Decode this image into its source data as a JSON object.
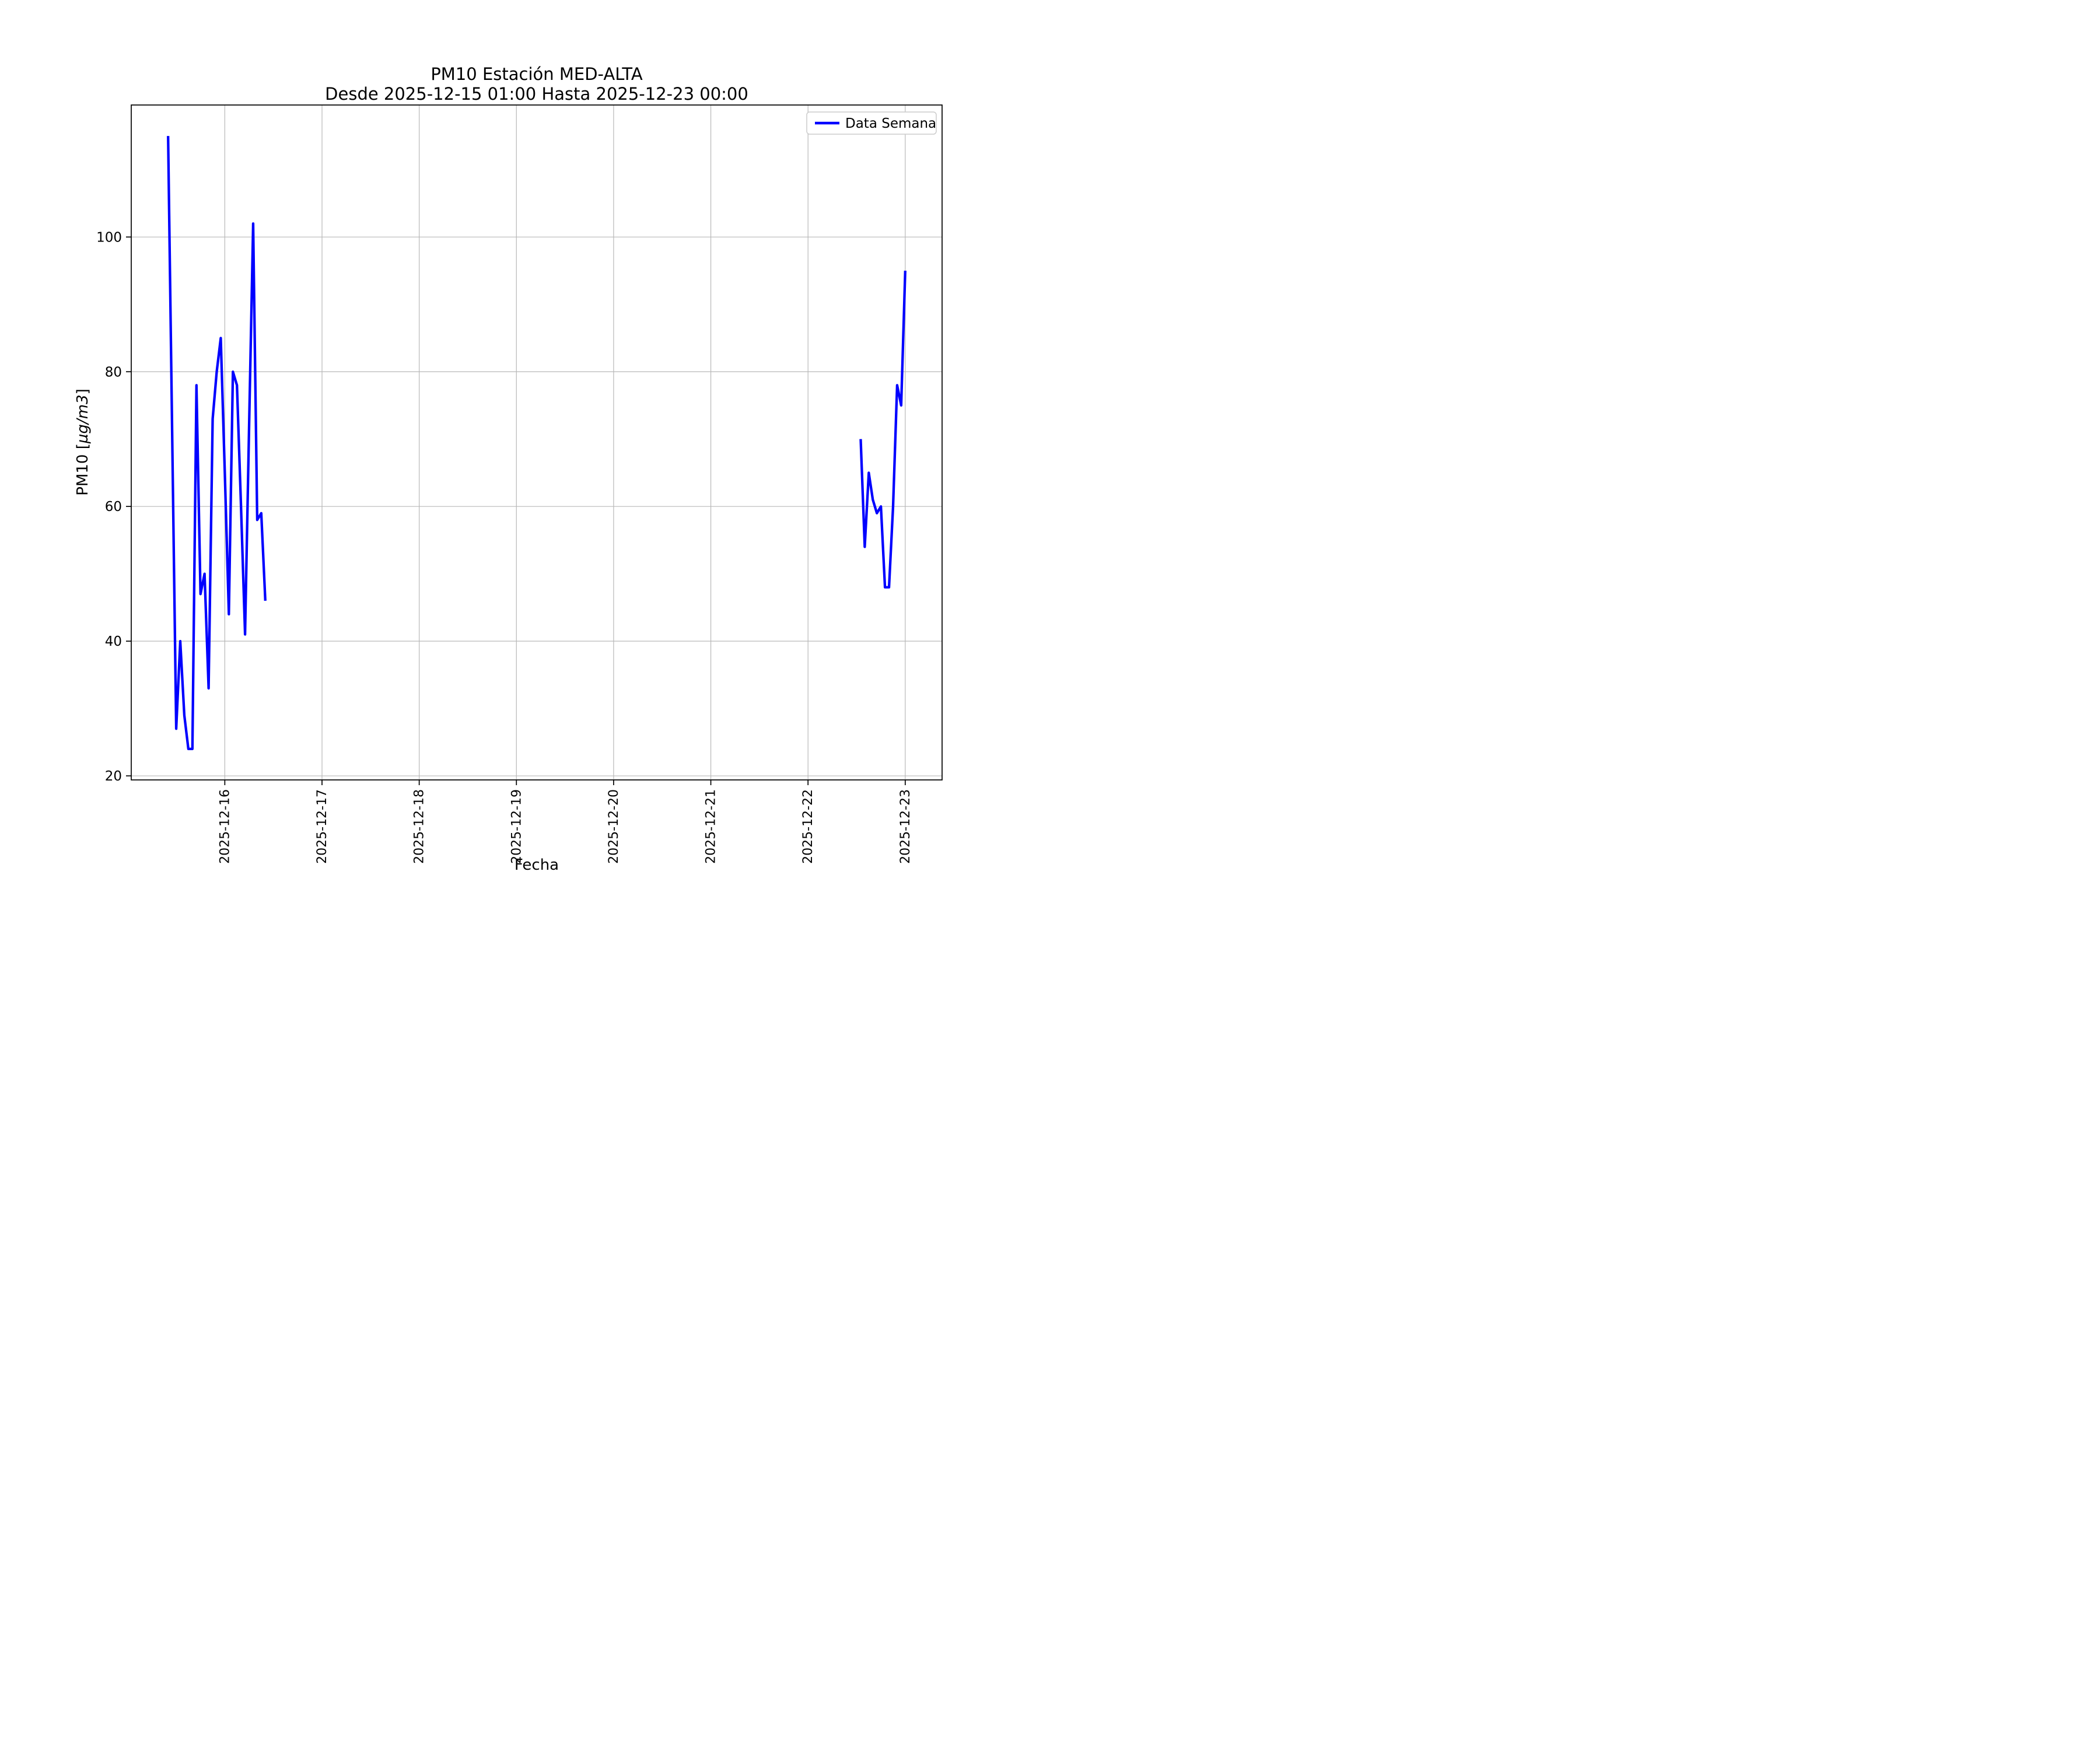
{
  "chart_data": {
    "type": "line",
    "title": "PM10 Estación MED-ALTA",
    "subtitle": "Desde 2025-12-15 01:00 Hasta 2025-12-23 00:00",
    "xlabel": "Fecha",
    "ylabel": "PM10 [µg/m3]",
    "ylabel_parts": {
      "prefix": "PM10 [",
      "math": "µg/m3",
      "suffix": "]"
    },
    "grid": true,
    "line_color": "#0000ff",
    "grid_color": "#b8b8b8",
    "x_axis": {
      "unit": "hours since 2025-12-15 00:00",
      "lim": [
        0.9,
        201.1
      ],
      "ticks": [
        24,
        48,
        72,
        96,
        120,
        144,
        168,
        192
      ],
      "tick_labels": [
        "2025-12-16",
        "2025-12-17",
        "2025-12-18",
        "2025-12-19",
        "2025-12-20",
        "2025-12-21",
        "2025-12-22",
        "2025-12-23"
      ],
      "tick_rotation_deg": 90
    },
    "y_axis": {
      "lim": [
        19.4,
        119.6
      ],
      "ticks": [
        20,
        40,
        60,
        80,
        100
      ],
      "tick_labels": [
        "20",
        "40",
        "60",
        "80",
        "100"
      ]
    },
    "legend": {
      "position": "upper right",
      "entries": [
        {
          "label": "Data Semana",
          "color": "#0000ff"
        }
      ]
    },
    "series": [
      {
        "name": "Data Semana",
        "color": "#0000ff",
        "segments": [
          {
            "points_h_v": [
              [
                10,
                115
              ],
              [
                11,
                71
              ],
              [
                12,
                27
              ],
              [
                13,
                40
              ],
              [
                14,
                29
              ],
              [
                15,
                24
              ],
              [
                16,
                24
              ],
              [
                17,
                78
              ],
              [
                18,
                47
              ],
              [
                19,
                50
              ],
              [
                20,
                33
              ],
              [
                21,
                73
              ],
              [
                22,
                80
              ],
              [
                23,
                85
              ],
              [
                24,
                65
              ],
              [
                25,
                44
              ],
              [
                26,
                80
              ],
              [
                27,
                78
              ],
              [
                28,
                60
              ],
              [
                29,
                41
              ],
              [
                30,
                72
              ],
              [
                31,
                102
              ],
              [
                32,
                58
              ],
              [
                33,
                59
              ],
              [
                34,
                46
              ]
            ]
          },
          {
            "points_h_v": [
              [
                181,
                70
              ],
              [
                182,
                54
              ],
              [
                183,
                65
              ],
              [
                184,
                61
              ],
              [
                185,
                59
              ],
              [
                186,
                60
              ],
              [
                187,
                48
              ],
              [
                188,
                48
              ],
              [
                189,
                60
              ],
              [
                190,
                78
              ],
              [
                191,
                75
              ],
              [
                192,
                95
              ]
            ]
          }
        ]
      }
    ]
  }
}
